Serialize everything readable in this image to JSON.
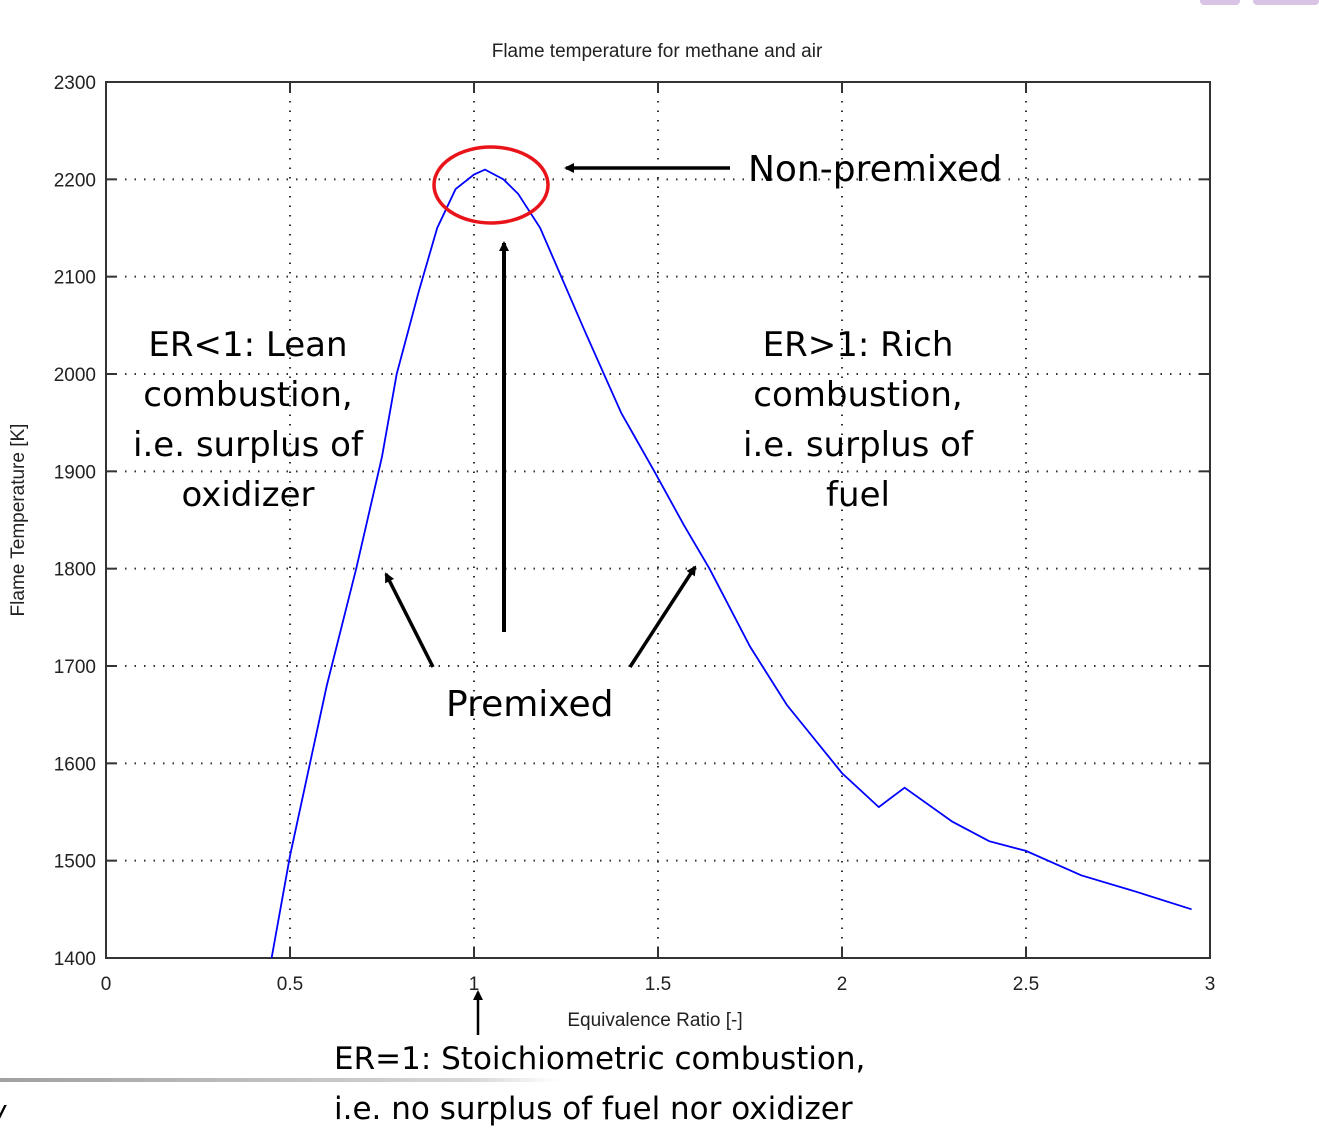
{
  "chart_data": {
    "type": "line",
    "title": "Flame temperature for methane and air",
    "xlabel": "Equivalence Ratio [-]",
    "ylabel": "Flame Temperature [K]",
    "xlim": [
      0,
      3
    ],
    "ylim": [
      1400,
      2300
    ],
    "xticks": [
      "0",
      "0.5",
      "1",
      "1.5",
      "2",
      "2.5",
      "3"
    ],
    "yticks": [
      "1400",
      "1500",
      "1600",
      "1700",
      "1800",
      "1900",
      "2000",
      "2100",
      "2200",
      "2300"
    ],
    "grid": true,
    "legend": null,
    "series": [
      {
        "name": "Flame temperature",
        "color": "#0000ff",
        "x": [
          0.45,
          0.5,
          0.6,
          0.68,
          0.75,
          0.79,
          0.85,
          0.9,
          0.95,
          1.0,
          1.03,
          1.08,
          1.12,
          1.18,
          1.3,
          1.4,
          1.49,
          1.57,
          1.64,
          1.75,
          1.85,
          2.0,
          2.1,
          2.17,
          2.3,
          2.4,
          2.5,
          2.65,
          2.8,
          2.95
        ],
        "y": [
          1400,
          1505,
          1680,
          1800,
          1915,
          2000,
          2085,
          2150,
          2190,
          2205,
          2210,
          2200,
          2185,
          2150,
          2045,
          1960,
          1900,
          1845,
          1800,
          1720,
          1660,
          1590,
          1555,
          1575,
          1540,
          1520,
          1510,
          1485,
          1468,
          1450
        ]
      }
    ],
    "annotations": {
      "non_premixed": "Non-premixed",
      "premixed": "Premixed",
      "lean": [
        "ER<1: Lean",
        "combustion,",
        "i.e. surplus of",
        "oxidizer"
      ],
      "rich": [
        "ER>1: Rich",
        "combustion,",
        "i.e. surplus of",
        "fuel"
      ],
      "stoich": [
        "ER=1: Stoichiometric combustion,",
        "i.e. no surplus of fuel nor oxidizer"
      ]
    },
    "highlight": {
      "shape": "ellipse",
      "color": "#e8141a",
      "center_x": 1.03,
      "center_y": 2200
    }
  },
  "footer": {
    "fragment": "/"
  }
}
